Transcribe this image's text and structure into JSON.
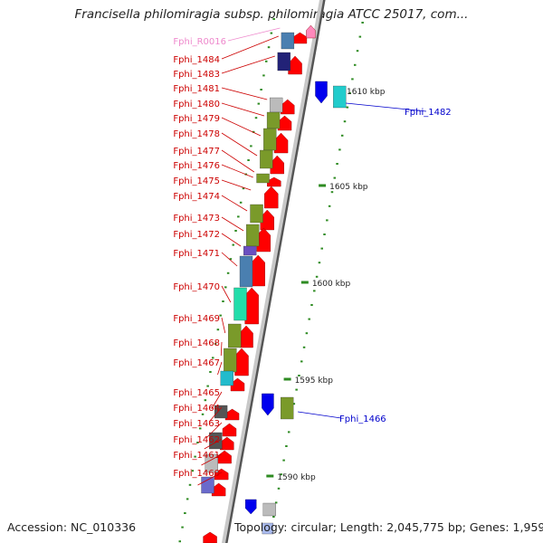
{
  "title": "Francisella philomiragia subsp. philomiragia ATCC 25017, com...",
  "footer": {
    "accession": "Accession: NC_010336",
    "topology": "Topology: circular; Length: 2,045,775 bp; Genes: 1,959"
  },
  "colors": {
    "reverse_label": "#cc0000",
    "forward_label": "#0000cc",
    "rna_label": "#ee88cc",
    "cds_arrow": "#ff0000",
    "backbone": "#999999",
    "tick": "#2e8b22"
  },
  "ruler": [
    {
      "label": "1610 kbp"
    },
    {
      "label": "1605 kbp"
    },
    {
      "label": "1600 kbp"
    },
    {
      "label": "1595 kbp"
    },
    {
      "label": "1590 kbp"
    }
  ],
  "reverse_genes": [
    {
      "name": "Fphi_R0016",
      "kind": "rna"
    },
    {
      "name": "Fphi_1484",
      "kind": "cds"
    },
    {
      "name": "Fphi_1483",
      "kind": "cds"
    },
    {
      "name": "Fphi_1481",
      "kind": "cds"
    },
    {
      "name": "Fphi_1480",
      "kind": "cds"
    },
    {
      "name": "Fphi_1479",
      "kind": "cds"
    },
    {
      "name": "Fphi_1478",
      "kind": "cds"
    },
    {
      "name": "Fphi_1477",
      "kind": "cds"
    },
    {
      "name": "Fphi_1476",
      "kind": "cds"
    },
    {
      "name": "Fphi_1475",
      "kind": "cds"
    },
    {
      "name": "Fphi_1474",
      "kind": "cds"
    },
    {
      "name": "Fphi_1473",
      "kind": "cds"
    },
    {
      "name": "Fphi_1472",
      "kind": "cds"
    },
    {
      "name": "Fphi_1471",
      "kind": "cds"
    },
    {
      "name": "Fphi_1470",
      "kind": "cds"
    },
    {
      "name": "Fphi_1469",
      "kind": "cds"
    },
    {
      "name": "Fphi_1468",
      "kind": "cds"
    },
    {
      "name": "Fphi_1467",
      "kind": "cds"
    },
    {
      "name": "Fphi_1465",
      "kind": "cds"
    },
    {
      "name": "Fphi_1464",
      "kind": "cds"
    },
    {
      "name": "Fphi_1463",
      "kind": "cds"
    },
    {
      "name": "Fphi_1462",
      "kind": "cds"
    },
    {
      "name": "Fphi_1461",
      "kind": "cds"
    },
    {
      "name": "Fphi_1460",
      "kind": "cds"
    }
  ],
  "forward_genes": [
    {
      "name": "Fphi_1482"
    },
    {
      "name": "Fphi_1466"
    }
  ]
}
